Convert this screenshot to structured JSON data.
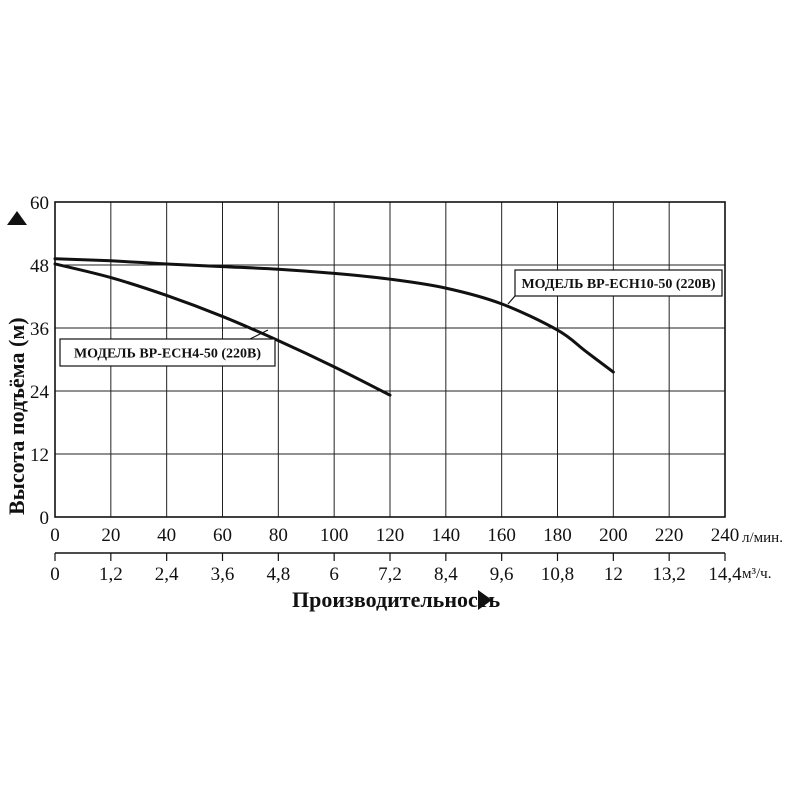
{
  "chart_data": {
    "type": "line",
    "xlabel": "Производительность",
    "ylabel": "Высота подъёма (м)",
    "x_unit": "л/мин.",
    "x2_unit": "м³/ч.",
    "xlim": [
      0,
      240
    ],
    "ylim": [
      0,
      60
    ],
    "x_ticks": [
      "0",
      "20",
      "40",
      "60",
      "80",
      "100",
      "120",
      "140",
      "160",
      "180",
      "200",
      "220",
      "240"
    ],
    "x2_ticks": [
      "0",
      "1,2",
      "2,4",
      "3,6",
      "4,8",
      "6",
      "7,2",
      "8,4",
      "9,6",
      "10,8",
      "12",
      "13,2",
      "14,4"
    ],
    "y_ticks": [
      "0",
      "12",
      "24",
      "36",
      "48",
      "60"
    ],
    "grid": true,
    "series": [
      {
        "name": "МОДЕЛЬ BP-ECH10-50 (220B)",
        "x": [
          0,
          20,
          40,
          60,
          80,
          100,
          120,
          140,
          160,
          180,
          190,
          200
        ],
        "y": [
          49.2,
          48.8,
          48.2,
          47.7,
          47.2,
          46.4,
          45.3,
          43.6,
          40.6,
          35.6,
          31.6,
          27.6
        ]
      },
      {
        "name": "МОДЕЛЬ BP-ECH4-50 (220B)",
        "x": [
          0,
          20,
          40,
          60,
          80,
          100,
          120
        ],
        "y": [
          48.2,
          45.6,
          42.2,
          38.2,
          33.6,
          28.6,
          23.2
        ]
      }
    ]
  }
}
